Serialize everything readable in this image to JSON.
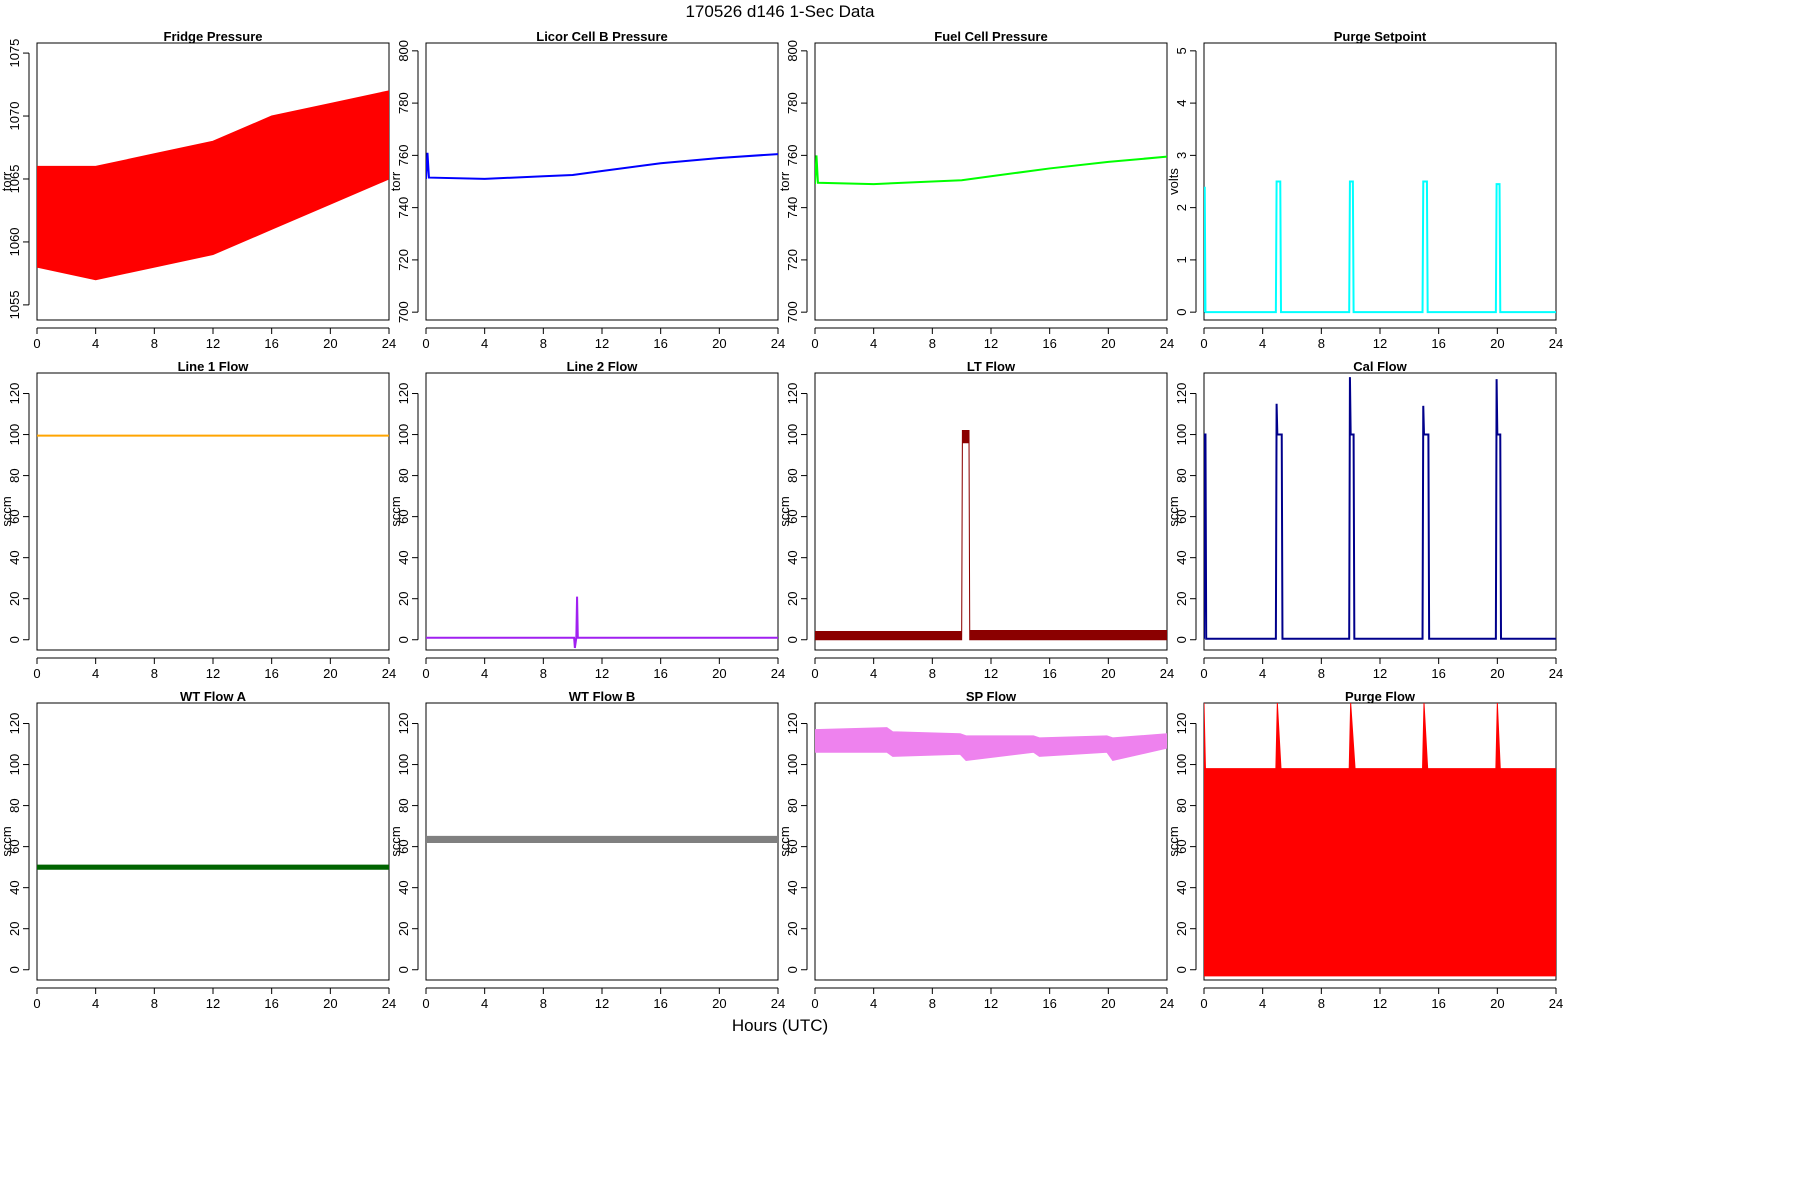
{
  "page": {
    "title": "170526   d146   1-Sec Data",
    "x_axis_label": "Hours (UTC)"
  },
  "chart_data": [
    {
      "type": "line",
      "title": "Fridge Pressure",
      "ylabel": "torr",
      "color": "#ff0000",
      "xlim": [
        0,
        24
      ],
      "ylim": [
        1053.8,
        1075.8
      ],
      "x_ticks": [
        0,
        4,
        8,
        12,
        16,
        20,
        24
      ],
      "y_ticks": [
        1055,
        1060,
        1065,
        1070,
        1075
      ],
      "series": [
        {
          "x": [
            0,
            4,
            8,
            12,
            16,
            20,
            24
          ],
          "y_low": [
            1058,
            1057,
            1058,
            1059,
            1061,
            1063,
            1065
          ],
          "y_high": [
            1066,
            1066,
            1067,
            1068,
            1070,
            1071,
            1072
          ]
        }
      ]
    },
    {
      "type": "line",
      "title": "Licor Cell B Pressure",
      "ylabel": "torr",
      "color": "#0000ff",
      "xlim": [
        0,
        24
      ],
      "ylim": [
        697,
        803
      ],
      "x_ticks": [
        0,
        4,
        8,
        12,
        16,
        20,
        24
      ],
      "y_ticks": [
        700,
        720,
        740,
        760,
        780,
        800
      ],
      "series": [
        {
          "x": [
            0,
            0.1,
            0.2,
            4,
            8,
            10,
            12,
            16,
            20,
            24
          ],
          "y": [
            751,
            761,
            751.5,
            751,
            752,
            752.5,
            754,
            757,
            759,
            760.5
          ]
        }
      ]
    },
    {
      "type": "line",
      "title": "Fuel Cell Pressure",
      "ylabel": "torr",
      "color": "#00ff00",
      "xlim": [
        0,
        24
      ],
      "ylim": [
        697,
        803
      ],
      "x_ticks": [
        0,
        4,
        8,
        12,
        16,
        20,
        24
      ],
      "y_ticks": [
        700,
        720,
        740,
        760,
        780,
        800
      ],
      "series": [
        {
          "x": [
            0,
            0.1,
            0.2,
            4,
            8,
            10,
            12,
            16,
            20,
            24
          ],
          "y": [
            749,
            760,
            749.5,
            749,
            750,
            750.5,
            752,
            755,
            757.5,
            759.5
          ]
        }
      ]
    },
    {
      "type": "line",
      "title": "Purge Setpoint",
      "ylabel": "volts",
      "color": "#00ffff",
      "xlim": [
        0,
        24
      ],
      "ylim": [
        -0.15,
        5.15
      ],
      "x_ticks": [
        0,
        4,
        8,
        12,
        16,
        20,
        24
      ],
      "y_ticks": [
        0,
        1,
        2,
        3,
        4,
        5
      ],
      "series": [
        {
          "x": [
            0,
            0.05,
            0.1,
            4.9,
            4.95,
            5.2,
            5.25,
            9.9,
            9.95,
            10.15,
            10.2,
            14.9,
            14.95,
            15.2,
            15.25,
            19.9,
            19.95,
            20.15,
            20.2,
            24
          ],
          "y": [
            0,
            2.4,
            0,
            0,
            2.5,
            2.5,
            0,
            0,
            2.5,
            2.5,
            0,
            0,
            2.5,
            2.5,
            0,
            0,
            2.45,
            2.45,
            0,
            0
          ]
        }
      ]
    },
    {
      "type": "line",
      "title": "Line 1 Flow",
      "ylabel": "sccm",
      "color": "#ffa500",
      "xlim": [
        0,
        24
      ],
      "ylim": [
        -5,
        130
      ],
      "x_ticks": [
        0,
        4,
        8,
        12,
        16,
        20,
        24
      ],
      "y_ticks": [
        0,
        20,
        40,
        60,
        80,
        100,
        120
      ],
      "series": [
        {
          "x": [
            0,
            24
          ],
          "y": [
            99.5,
            99.5
          ]
        }
      ]
    },
    {
      "type": "line",
      "title": "Line 2 Flow",
      "ylabel": "sccm",
      "color": "#a020f0",
      "xlim": [
        0,
        24
      ],
      "ylim": [
        -5,
        130
      ],
      "x_ticks": [
        0,
        4,
        8,
        12,
        16,
        20,
        24
      ],
      "y_ticks": [
        0,
        20,
        40,
        60,
        80,
        100,
        120
      ],
      "series": [
        {
          "x": [
            0,
            10.1,
            10.15,
            10.25,
            10.3,
            10.35,
            24
          ],
          "y": [
            1,
            1,
            -4,
            1,
            21,
            1,
            1
          ]
        }
      ]
    },
    {
      "type": "line",
      "title": "LT Flow",
      "ylabel": "sccm",
      "color": "#8b0000",
      "xlim": [
        0,
        24
      ],
      "ylim": [
        -5,
        130
      ],
      "x_ticks": [
        0,
        4,
        8,
        12,
        16,
        20,
        24
      ],
      "y_ticks": [
        0,
        20,
        40,
        60,
        80,
        100,
        120
      ],
      "series": [
        {
          "x": [
            0,
            10,
            10.05,
            10.5,
            10.55,
            24
          ],
          "y_low": [
            0,
            0,
            96,
            96,
            0,
            0
          ],
          "y_high": [
            4,
            4,
            102,
            102,
            4.5,
            4.5
          ]
        }
      ]
    },
    {
      "type": "line",
      "title": "Cal Flow",
      "ylabel": "sccm",
      "color": "#00008b",
      "xlim": [
        0,
        24
      ],
      "ylim": [
        -5,
        130
      ],
      "x_ticks": [
        0,
        4,
        8,
        12,
        16,
        20,
        24
      ],
      "y_ticks": [
        0,
        20,
        40,
        60,
        80,
        100,
        120
      ],
      "series": [
        {
          "x": [
            0,
            0.05,
            0.1,
            0.15,
            4.9,
            4.95,
            5.0,
            5.05,
            5.3,
            5.35,
            9.9,
            9.95,
            10.0,
            10.05,
            10.2,
            10.25,
            14.9,
            14.95,
            15.0,
            15.05,
            15.3,
            15.35,
            19.9,
            19.95,
            20.0,
            20.05,
            20.2,
            20.25,
            24
          ],
          "y": [
            0.5,
            100,
            100,
            0.5,
            0.5,
            115,
            100,
            100,
            100,
            0.5,
            0.5,
            128,
            100,
            100,
            100,
            0.5,
            0.5,
            114,
            100,
            100,
            100,
            0.5,
            0.5,
            127,
            100,
            100,
            100,
            0.5,
            0.5
          ]
        }
      ]
    },
    {
      "type": "line",
      "title": "WT Flow A",
      "ylabel": "sccm",
      "color": "#006400",
      "xlim": [
        0,
        24
      ],
      "ylim": [
        -5,
        130
      ],
      "x_ticks": [
        0,
        4,
        8,
        12,
        16,
        20,
        24
      ],
      "y_ticks": [
        0,
        20,
        40,
        60,
        80,
        100,
        120
      ],
      "series": [
        {
          "x": [
            0,
            24
          ],
          "y_low": [
            49,
            49
          ],
          "y_high": [
            51,
            51
          ]
        }
      ]
    },
    {
      "type": "line",
      "title": "WT Flow B",
      "ylabel": "sccm",
      "color": "#808080",
      "xlim": [
        0,
        24
      ],
      "ylim": [
        -5,
        130
      ],
      "x_ticks": [
        0,
        4,
        8,
        12,
        16,
        20,
        24
      ],
      "y_ticks": [
        0,
        20,
        40,
        60,
        80,
        100,
        120
      ],
      "series": [
        {
          "x": [
            0,
            24
          ],
          "y_low": [
            62,
            62
          ],
          "y_high": [
            65,
            65
          ]
        }
      ]
    },
    {
      "type": "line",
      "title": "SP Flow",
      "ylabel": "sccm",
      "color": "#ee82ee",
      "xlim": [
        0,
        24
      ],
      "ylim": [
        -5,
        130
      ],
      "x_ticks": [
        0,
        4,
        8,
        12,
        16,
        20,
        24
      ],
      "y_ticks": [
        0,
        20,
        40,
        60,
        80,
        100,
        120
      ],
      "series": [
        {
          "x": [
            0,
            4.9,
            5.3,
            9.9,
            10.3,
            14.9,
            15.3,
            19.9,
            20.3,
            24
          ],
          "y_low": [
            106,
            106,
            104,
            105,
            102,
            106,
            104,
            106,
            102,
            108
          ],
          "y_high": [
            117,
            118,
            116,
            115,
            114,
            114,
            113,
            114,
            113,
            115
          ]
        }
      ]
    },
    {
      "type": "line",
      "title": "Purge Flow",
      "ylabel": "sccm",
      "color": "#ff0000",
      "xlim": [
        0,
        24
      ],
      "ylim": [
        -5,
        130
      ],
      "x_ticks": [
        0,
        4,
        8,
        12,
        16,
        20,
        24
      ],
      "y_ticks": [
        0,
        20,
        40,
        60,
        80,
        100,
        120
      ],
      "series": [
        {
          "x": [
            0,
            0.1,
            4.9,
            5.0,
            5.25,
            9.9,
            10.0,
            10.3,
            14.9,
            15.0,
            15.25,
            19.9,
            20.0,
            20.2,
            24
          ],
          "y_low": [
            -3,
            -3,
            -3,
            -3,
            -3,
            -3,
            -3,
            -3,
            -3,
            -3,
            -3,
            -3,
            -3,
            -3,
            -3
          ],
          "y_high": [
            130,
            98,
            98,
            130,
            98,
            98,
            130,
            98,
            98,
            130,
            98,
            98,
            130,
            98,
            98
          ]
        }
      ]
    }
  ]
}
